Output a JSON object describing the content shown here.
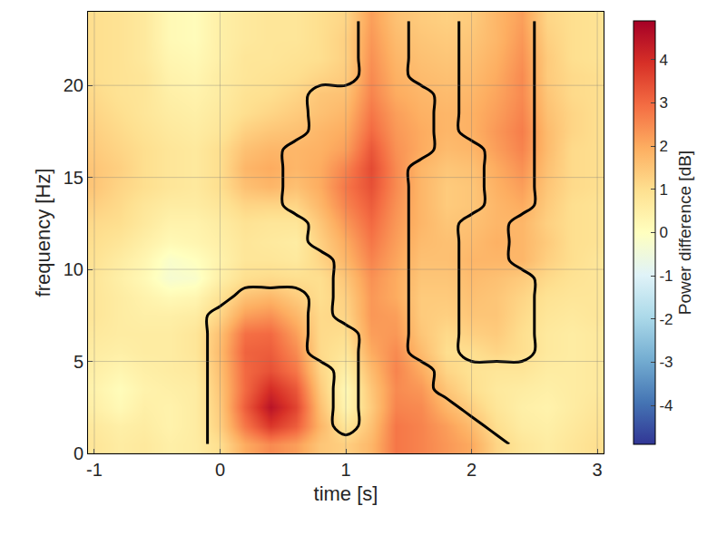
{
  "chart_data": {
    "type": "heatmap",
    "xlabel": "time [s]",
    "ylabel": "frequency [Hz]",
    "colorbar_label": "Power difference [dB]",
    "xlim": [
      -1.05,
      3.05
    ],
    "xticks": [
      -1,
      0,
      1,
      2,
      3
    ],
    "ylim": [
      0,
      24
    ],
    "yticks": [
      0,
      5,
      10,
      15,
      20
    ],
    "zlim": [
      -4.9,
      4.9
    ],
    "zticks": [
      -4,
      -3,
      -2,
      -1,
      0,
      1,
      2,
      3,
      4
    ],
    "grid": true,
    "x": [
      -1.0,
      -0.8,
      -0.6,
      -0.4,
      -0.2,
      0.0,
      0.2,
      0.4,
      0.6,
      0.8,
      1.0,
      1.2,
      1.4,
      1.6,
      1.8,
      2.0,
      2.2,
      2.4,
      2.6,
      2.8,
      3.0
    ],
    "y": [
      0.5,
      1.5,
      2.5,
      3.5,
      4.5,
      5.5,
      6.5,
      7.5,
      8.5,
      9.5,
      10.5,
      11.5,
      12.5,
      13.5,
      14.5,
      15.5,
      16.5,
      17.5,
      18.5,
      19.5,
      20.5,
      21.5,
      22.5,
      23.5
    ],
    "z": [
      [
        0.8,
        0.6,
        0.7,
        0.5,
        0.6,
        1.0,
        2.0,
        2.5,
        2.2,
        1.5,
        1.3,
        1.8,
        2.8,
        2.6,
        2.3,
        2.0,
        1.2,
        0.8,
        0.6,
        0.8,
        1.0
      ],
      [
        0.7,
        0.5,
        0.6,
        0.4,
        0.6,
        1.3,
        2.8,
        3.8,
        3.2,
        1.8,
        0.8,
        1.6,
        2.8,
        2.6,
        2.2,
        1.7,
        1.0,
        0.6,
        0.5,
        0.7,
        0.9
      ],
      [
        0.5,
        0.2,
        0.5,
        0.4,
        0.6,
        1.4,
        3.2,
        4.5,
        3.6,
        1.6,
        0.3,
        1.4,
        2.6,
        2.5,
        1.8,
        1.3,
        0.8,
        0.5,
        0.4,
        0.6,
        0.8
      ],
      [
        0.4,
        0.1,
        0.4,
        0.5,
        0.6,
        1.5,
        3.0,
        4.0,
        3.3,
        1.4,
        0.2,
        1.5,
        2.5,
        2.3,
        1.5,
        1.0,
        0.7,
        0.6,
        0.5,
        0.6,
        0.7
      ],
      [
        0.5,
        0.3,
        0.5,
        0.6,
        0.7,
        1.6,
        3.0,
        3.4,
        2.8,
        1.2,
        0.5,
        1.7,
        2.6,
        2.0,
        1.2,
        0.9,
        0.8,
        0.8,
        0.6,
        0.6,
        0.7
      ],
      [
        0.6,
        0.5,
        0.6,
        0.6,
        0.8,
        1.7,
        3.1,
        3.2,
        2.5,
        1.1,
        0.8,
        2.0,
        2.5,
        1.7,
        1.0,
        1.0,
        1.2,
        1.0,
        0.7,
        0.6,
        0.7
      ],
      [
        0.7,
        0.6,
        0.6,
        0.6,
        0.8,
        1.6,
        2.9,
        3.0,
        2.2,
        1.1,
        1.0,
        2.2,
        2.3,
        1.5,
        1.1,
        1.3,
        1.4,
        1.0,
        0.7,
        0.6,
        0.7
      ],
      [
        0.8,
        0.6,
        0.5,
        0.5,
        0.6,
        1.2,
        2.2,
        2.4,
        1.8,
        1.1,
        1.2,
        2.3,
        2.2,
        1.4,
        1.3,
        1.5,
        1.5,
        1.1,
        0.8,
        0.7,
        0.8
      ],
      [
        0.8,
        0.6,
        0.4,
        0.2,
        0.3,
        0.9,
        1.6,
        1.8,
        1.4,
        1.0,
        1.3,
        2.3,
        2.0,
        1.4,
        1.4,
        1.6,
        1.5,
        1.2,
        0.9,
        0.8,
        0.8
      ],
      [
        0.8,
        0.5,
        0.2,
        -0.3,
        -0.2,
        0.5,
        1.0,
        1.1,
        1.0,
        1.0,
        1.5,
        2.4,
        2.0,
        1.5,
        1.5,
        1.7,
        1.6,
        1.4,
        1.1,
        0.9,
        0.8
      ],
      [
        0.9,
        0.6,
        0.3,
        -0.2,
        0.0,
        0.4,
        0.8,
        0.8,
        0.7,
        1.2,
        1.8,
        2.6,
        2.1,
        1.6,
        1.6,
        1.8,
        1.8,
        1.8,
        1.3,
        1.0,
        0.8
      ],
      [
        1.0,
        0.8,
        0.5,
        0.2,
        0.3,
        0.5,
        0.8,
        0.7,
        0.6,
        1.3,
        2.0,
        2.8,
        2.2,
        1.7,
        1.6,
        1.7,
        1.9,
        1.8,
        1.4,
        1.0,
        0.9
      ],
      [
        1.1,
        1.0,
        0.7,
        0.4,
        0.4,
        0.6,
        0.9,
        0.8,
        0.8,
        1.5,
        2.3,
        3.0,
        2.3,
        1.8,
        1.5,
        1.6,
        1.8,
        1.8,
        1.3,
        1.0,
        0.9
      ],
      [
        1.3,
        1.1,
        0.8,
        0.6,
        0.6,
        0.8,
        1.2,
        1.2,
        1.2,
        1.8,
        2.6,
        3.2,
        2.4,
        1.8,
        1.4,
        1.5,
        1.8,
        2.0,
        1.4,
        1.0,
        0.9
      ],
      [
        1.5,
        1.2,
        1.0,
        0.8,
        0.7,
        1.0,
        1.6,
        1.8,
        1.6,
        2.0,
        2.8,
        3.4,
        2.5,
        1.8,
        1.4,
        1.5,
        1.9,
        2.2,
        1.5,
        1.1,
        1.0
      ],
      [
        1.5,
        1.3,
        1.0,
        0.8,
        0.7,
        1.0,
        1.8,
        2.0,
        1.8,
        2.0,
        2.6,
        3.5,
        2.5,
        1.8,
        1.5,
        1.6,
        2.0,
        2.4,
        1.6,
        1.1,
        1.0
      ],
      [
        1.4,
        1.2,
        1.0,
        0.8,
        0.7,
        1.0,
        1.6,
        1.8,
        1.8,
        1.9,
        2.2,
        3.3,
        2.4,
        2.0,
        1.7,
        1.8,
        2.2,
        2.6,
        1.7,
        1.1,
        1.0
      ],
      [
        1.3,
        1.1,
        0.9,
        0.7,
        0.6,
        0.8,
        1.3,
        1.5,
        1.6,
        1.8,
        2.0,
        3.0,
        2.3,
        2.0,
        1.8,
        1.9,
        2.3,
        2.7,
        1.7,
        1.2,
        1.0
      ],
      [
        1.2,
        1.0,
        0.8,
        0.6,
        0.5,
        0.7,
        1.0,
        1.2,
        1.4,
        1.6,
        1.8,
        2.8,
        2.2,
        1.9,
        1.8,
        1.9,
        2.2,
        2.6,
        1.6,
        1.2,
        1.0
      ],
      [
        1.1,
        0.9,
        0.8,
        0.5,
        0.4,
        0.6,
        0.9,
        1.0,
        1.2,
        1.5,
        1.6,
        2.6,
        2.0,
        1.8,
        1.7,
        1.8,
        2.1,
        2.5,
        1.5,
        1.1,
        1.0
      ],
      [
        1.0,
        0.9,
        0.8,
        0.4,
        0.3,
        0.6,
        0.8,
        0.9,
        1.0,
        1.2,
        1.4,
        2.5,
        1.9,
        1.7,
        1.6,
        1.7,
        2.0,
        2.5,
        1.4,
        1.1,
        1.0
      ],
      [
        1.0,
        0.9,
        0.7,
        0.3,
        0.2,
        0.5,
        0.8,
        0.8,
        0.9,
        1.0,
        1.3,
        2.4,
        1.8,
        1.6,
        1.5,
        1.6,
        1.9,
        2.4,
        1.4,
        1.0,
        0.9
      ],
      [
        1.0,
        0.9,
        0.7,
        0.2,
        0.1,
        0.5,
        0.7,
        0.8,
        0.8,
        1.0,
        1.3,
        2.3,
        1.7,
        1.5,
        1.4,
        1.5,
        1.8,
        2.3,
        1.3,
        1.0,
        0.9
      ],
      [
        1.0,
        0.9,
        0.7,
        0.2,
        0.1,
        0.5,
        0.7,
        0.8,
        0.8,
        1.0,
        1.2,
        2.2,
        1.6,
        1.4,
        1.3,
        1.4,
        1.8,
        2.2,
        1.2,
        1.0,
        0.9
      ]
    ],
    "significance_mask": [
      [
        0,
        0,
        0,
        0,
        0,
        1,
        1,
        1,
        1,
        1,
        1,
        1,
        1,
        1,
        1,
        1,
        1,
        0,
        0,
        0,
        0
      ],
      [
        0,
        0,
        0,
        0,
        0,
        1,
        1,
        1,
        1,
        1,
        0,
        1,
        1,
        1,
        1,
        1,
        0,
        0,
        0,
        0,
        0
      ],
      [
        0,
        0,
        0,
        0,
        0,
        1,
        1,
        1,
        1,
        1,
        0,
        1,
        1,
        1,
        1,
        0,
        0,
        0,
        0,
        0,
        0
      ],
      [
        0,
        0,
        0,
        0,
        0,
        1,
        1,
        1,
        1,
        1,
        0,
        1,
        1,
        1,
        0,
        0,
        0,
        0,
        0,
        0,
        0
      ],
      [
        0,
        0,
        0,
        0,
        0,
        1,
        1,
        1,
        1,
        1,
        0,
        1,
        1,
        1,
        0,
        0,
        0,
        0,
        0,
        0,
        0
      ],
      [
        0,
        0,
        0,
        0,
        0,
        1,
        1,
        1,
        1,
        0,
        0,
        1,
        1,
        0,
        0,
        1,
        1,
        1,
        0,
        0,
        0
      ],
      [
        0,
        0,
        0,
        0,
        0,
        1,
        1,
        1,
        1,
        0,
        0,
        1,
        1,
        0,
        0,
        1,
        1,
        1,
        0,
        0,
        0
      ],
      [
        0,
        0,
        0,
        0,
        0,
        1,
        1,
        1,
        1,
        0,
        1,
        1,
        1,
        0,
        0,
        1,
        1,
        1,
        0,
        0,
        0
      ],
      [
        0,
        0,
        0,
        0,
        0,
        0,
        1,
        1,
        1,
        0,
        1,
        1,
        1,
        0,
        0,
        1,
        1,
        1,
        0,
        0,
        0
      ],
      [
        0,
        0,
        0,
        0,
        0,
        0,
        0,
        0,
        0,
        0,
        1,
        1,
        1,
        0,
        0,
        1,
        1,
        1,
        0,
        0,
        0
      ],
      [
        0,
        0,
        0,
        0,
        0,
        0,
        0,
        0,
        0,
        0,
        1,
        1,
        1,
        0,
        0,
        1,
        1,
        0,
        0,
        0,
        0
      ],
      [
        0,
        0,
        0,
        0,
        0,
        0,
        0,
        0,
        0,
        1,
        1,
        1,
        1,
        0,
        0,
        1,
        1,
        0,
        0,
        0,
        0
      ],
      [
        0,
        0,
        0,
        0,
        0,
        0,
        0,
        0,
        0,
        1,
        1,
        1,
        1,
        0,
        0,
        1,
        1,
        0,
        0,
        0,
        0
      ],
      [
        0,
        0,
        0,
        0,
        0,
        0,
        0,
        0,
        1,
        1,
        1,
        1,
        1,
        0,
        0,
        0,
        1,
        1,
        0,
        0,
        0
      ],
      [
        0,
        0,
        0,
        0,
        0,
        0,
        0,
        0,
        1,
        1,
        1,
        1,
        1,
        0,
        0,
        0,
        1,
        1,
        0,
        0,
        0
      ],
      [
        0,
        0,
        0,
        0,
        0,
        0,
        0,
        0,
        1,
        1,
        1,
        1,
        1,
        0,
        0,
        0,
        1,
        1,
        0,
        0,
        0
      ],
      [
        0,
        0,
        0,
        0,
        0,
        0,
        0,
        0,
        1,
        1,
        1,
        1,
        1,
        1,
        0,
        0,
        1,
        1,
        0,
        0,
        0
      ],
      [
        0,
        0,
        0,
        0,
        0,
        0,
        0,
        0,
        0,
        1,
        1,
        1,
        1,
        1,
        0,
        1,
        1,
        1,
        0,
        0,
        0
      ],
      [
        0,
        0,
        0,
        0,
        0,
        0,
        0,
        0,
        0,
        1,
        1,
        1,
        1,
        1,
        0,
        1,
        1,
        1,
        0,
        0,
        0
      ],
      [
        0,
        0,
        0,
        0,
        0,
        0,
        0,
        0,
        0,
        1,
        1,
        1,
        1,
        1,
        0,
        1,
        1,
        1,
        0,
        0,
        0
      ],
      [
        0,
        0,
        0,
        0,
        0,
        0,
        0,
        0,
        0,
        0,
        0,
        1,
        1,
        0,
        0,
        1,
        1,
        1,
        0,
        0,
        0
      ],
      [
        0,
        0,
        0,
        0,
        0,
        0,
        0,
        0,
        0,
        0,
        0,
        1,
        1,
        0,
        0,
        1,
        1,
        1,
        0,
        0,
        0
      ],
      [
        0,
        0,
        0,
        0,
        0,
        0,
        0,
        0,
        0,
        0,
        0,
        1,
        1,
        0,
        0,
        1,
        1,
        1,
        0,
        0,
        0
      ],
      [
        0,
        0,
        0,
        0,
        0,
        0,
        0,
        0,
        0,
        0,
        0,
        1,
        1,
        0,
        0,
        1,
        1,
        1,
        0,
        0,
        0
      ]
    ]
  }
}
